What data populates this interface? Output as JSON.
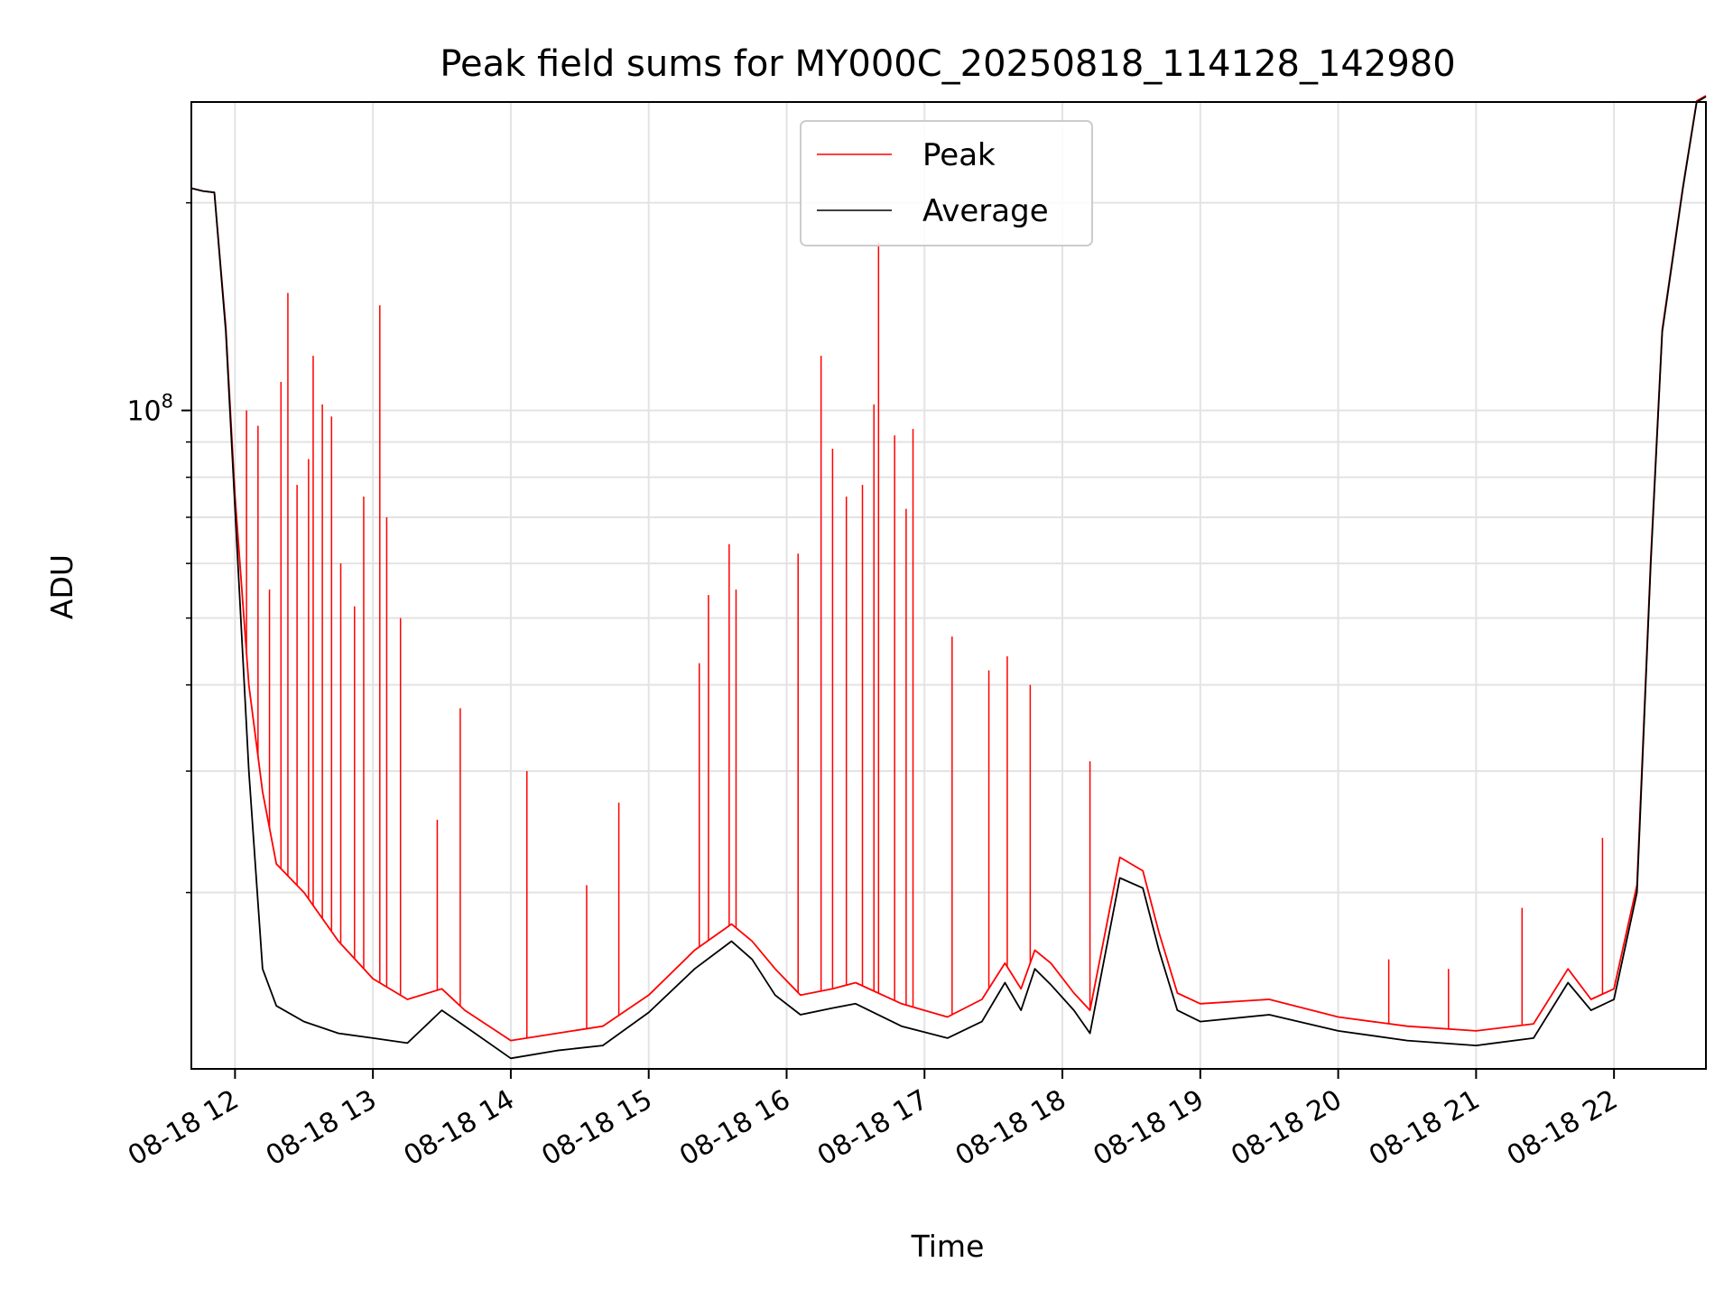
{
  "chart_data": {
    "type": "line",
    "title": "Peak field sums for MY000C_20250818_114128_142980",
    "xlabel": "Time",
    "ylabel": "ADU",
    "y_scale": "log",
    "ylim": [
      11100000,
      280000000
    ],
    "xlim": [
      "2025-08-18 11:41",
      "2025-08-18 22:40"
    ],
    "grid": true,
    "legend_position": "top-center",
    "x_tick_labels": [
      "08-18 12",
      "08-18 13",
      "08-18 14",
      "08-18 15",
      "08-18 16",
      "08-18 17",
      "08-18 18",
      "08-18 19",
      "08-18 20",
      "08-18 21",
      "08-18 22"
    ],
    "x_ticks": [
      "2025-08-18 12:00",
      "2025-08-18 13:00",
      "2025-08-18 14:00",
      "2025-08-18 15:00",
      "2025-08-18 16:00",
      "2025-08-18 17:00",
      "2025-08-18 18:00",
      "2025-08-18 19:00",
      "2025-08-18 20:00",
      "2025-08-18 21:00",
      "2025-08-18 22:00"
    ],
    "y_tick_labels": [
      {
        "value": 100000000,
        "base": "10",
        "exp": "8"
      }
    ],
    "y_minor_ticks": [
      20000000,
      30000000,
      40000000,
      50000000,
      60000000,
      70000000,
      80000000,
      90000000,
      200000000
    ],
    "series": [
      {
        "name": "Average",
        "color": "#000000",
        "x": [
          "2025-08-18 11:41",
          "2025-08-18 11:46",
          "2025-08-18 11:51",
          "2025-08-18 11:56",
          "2025-08-18 12:00",
          "2025-08-18 12:06",
          "2025-08-18 12:12",
          "2025-08-18 12:18",
          "2025-08-18 12:30",
          "2025-08-18 12:45",
          "2025-08-18 13:00",
          "2025-08-18 13:15",
          "2025-08-18 13:30",
          "2025-08-18 13:40",
          "2025-08-18 14:00",
          "2025-08-18 14:20",
          "2025-08-18 14:40",
          "2025-08-18 15:00",
          "2025-08-18 15:20",
          "2025-08-18 15:36",
          "2025-08-18 15:45",
          "2025-08-18 15:55",
          "2025-08-18 16:06",
          "2025-08-18 16:20",
          "2025-08-18 16:30",
          "2025-08-18 16:50",
          "2025-08-18 17:10",
          "2025-08-18 17:25",
          "2025-08-18 17:35",
          "2025-08-18 17:42",
          "2025-08-18 17:48",
          "2025-08-18 17:55",
          "2025-08-18 18:05",
          "2025-08-18 18:12",
          "2025-08-18 18:25",
          "2025-08-18 18:35",
          "2025-08-18 18:42",
          "2025-08-18 18:50",
          "2025-08-18 19:00",
          "2025-08-18 19:30",
          "2025-08-18 20:00",
          "2025-08-18 20:30",
          "2025-08-18 21:00",
          "2025-08-18 21:25",
          "2025-08-18 21:40",
          "2025-08-18 21:50",
          "2025-08-18 22:00",
          "2025-08-18 22:10",
          "2025-08-18 22:16",
          "2025-08-18 22:21",
          "2025-08-18 22:30",
          "2025-08-18 22:36",
          "2025-08-18 22:40"
        ],
        "values": [
          210000000,
          208000000,
          207000000,
          130000000,
          72000000,
          30000000,
          15500000,
          13700000,
          13000000,
          12500000,
          12300000,
          12100000,
          13500000,
          12800000,
          11500000,
          11800000,
          12000000,
          13400000,
          15500000,
          17000000,
          16000000,
          14200000,
          13300000,
          13600000,
          13800000,
          12800000,
          12300000,
          13000000,
          14800000,
          13500000,
          15500000,
          14700000,
          13500000,
          12500000,
          21000000,
          20300000,
          16500000,
          13500000,
          13000000,
          13300000,
          12600000,
          12200000,
          12000000,
          12300000,
          14800000,
          13500000,
          14000000,
          20000000,
          60000000,
          130000000,
          210000000,
          280000000,
          285000000
        ]
      },
      {
        "name": "Peak",
        "color": "#ff0000",
        "x": [
          "2025-08-18 11:41",
          "2025-08-18 11:46",
          "2025-08-18 11:51",
          "2025-08-18 11:56",
          "2025-08-18 12:00",
          "2025-08-18 12:06",
          "2025-08-18 12:12",
          "2025-08-18 12:18",
          "2025-08-18 12:30",
          "2025-08-18 12:45",
          "2025-08-18 13:00",
          "2025-08-18 13:15",
          "2025-08-18 13:30",
          "2025-08-18 13:40",
          "2025-08-18 14:00",
          "2025-08-18 14:20",
          "2025-08-18 14:40",
          "2025-08-18 15:00",
          "2025-08-18 15:20",
          "2025-08-18 15:36",
          "2025-08-18 15:45",
          "2025-08-18 15:55",
          "2025-08-18 16:06",
          "2025-08-18 16:20",
          "2025-08-18 16:30",
          "2025-08-18 16:50",
          "2025-08-18 17:10",
          "2025-08-18 17:25",
          "2025-08-18 17:35",
          "2025-08-18 17:42",
          "2025-08-18 17:48",
          "2025-08-18 17:55",
          "2025-08-18 18:05",
          "2025-08-18 18:12",
          "2025-08-18 18:25",
          "2025-08-18 18:35",
          "2025-08-18 18:42",
          "2025-08-18 18:50",
          "2025-08-18 19:00",
          "2025-08-18 19:30",
          "2025-08-18 20:00",
          "2025-08-18 20:30",
          "2025-08-18 21:00",
          "2025-08-18 21:25",
          "2025-08-18 21:40",
          "2025-08-18 21:50",
          "2025-08-18 22:00",
          "2025-08-18 22:10",
          "2025-08-18 22:16",
          "2025-08-18 22:21",
          "2025-08-18 22:30",
          "2025-08-18 22:36",
          "2025-08-18 22:40"
        ],
        "values": [
          210000000,
          208000000,
          207000000,
          132000000,
          75000000,
          40000000,
          28000000,
          22000000,
          20000000,
          17000000,
          15000000,
          14000000,
          14500000,
          13500000,
          12200000,
          12500000,
          12800000,
          14200000,
          16500000,
          18000000,
          17000000,
          15500000,
          14200000,
          14500000,
          14800000,
          13800000,
          13200000,
          14000000,
          15800000,
          14500000,
          16500000,
          15800000,
          14300000,
          13500000,
          22500000,
          21500000,
          17500000,
          14300000,
          13800000,
          14000000,
          13200000,
          12800000,
          12600000,
          12900000,
          15500000,
          14000000,
          14500000,
          20500000,
          61000000,
          131000000,
          211000000,
          281000000,
          286000000
        ]
      },
      {
        "name": "",
        "role": "peak-spikes",
        "color": "#ff0000",
        "x": [
          "2025-08-18 12:05",
          "2025-08-18 12:10",
          "2025-08-18 12:15",
          "2025-08-18 12:20",
          "2025-08-18 12:23",
          "2025-08-18 12:27",
          "2025-08-18 12:32",
          "2025-08-18 12:34",
          "2025-08-18 12:38",
          "2025-08-18 12:42",
          "2025-08-18 12:46",
          "2025-08-18 12:52",
          "2025-08-18 12:56",
          "2025-08-18 13:03",
          "2025-08-18 13:06",
          "2025-08-18 13:12",
          "2025-08-18 13:28",
          "2025-08-18 13:38",
          "2025-08-18 14:07",
          "2025-08-18 14:33",
          "2025-08-18 14:47",
          "2025-08-18 15:22",
          "2025-08-18 15:26",
          "2025-08-18 15:35",
          "2025-08-18 15:38",
          "2025-08-18 16:05",
          "2025-08-18 16:15",
          "2025-08-18 16:20",
          "2025-08-18 16:26",
          "2025-08-18 16:33",
          "2025-08-18 16:38",
          "2025-08-18 16:40",
          "2025-08-18 16:47",
          "2025-08-18 16:52",
          "2025-08-18 16:55",
          "2025-08-18 17:12",
          "2025-08-18 17:28",
          "2025-08-18 17:36",
          "2025-08-18 17:46",
          "2025-08-18 18:12",
          "2025-08-18 20:22",
          "2025-08-18 20:48",
          "2025-08-18 21:20",
          "2025-08-18 21:55"
        ],
        "values": [
          100000000,
          95000000,
          55000000,
          110000000,
          148000000,
          78000000,
          85000000,
          120000000,
          102000000,
          98000000,
          60000000,
          52000000,
          75000000,
          142000000,
          70000000,
          50000000,
          25500000,
          37000000,
          30000000,
          20500000,
          27000000,
          43000000,
          54000000,
          64000000,
          55000000,
          62000000,
          120000000,
          88000000,
          75000000,
          78000000,
          102000000,
          175000000,
          92000000,
          72000000,
          94000000,
          47000000,
          42000000,
          44000000,
          40000000,
          31000000,
          16000000,
          15500000,
          19000000,
          24000000
        ]
      }
    ]
  }
}
